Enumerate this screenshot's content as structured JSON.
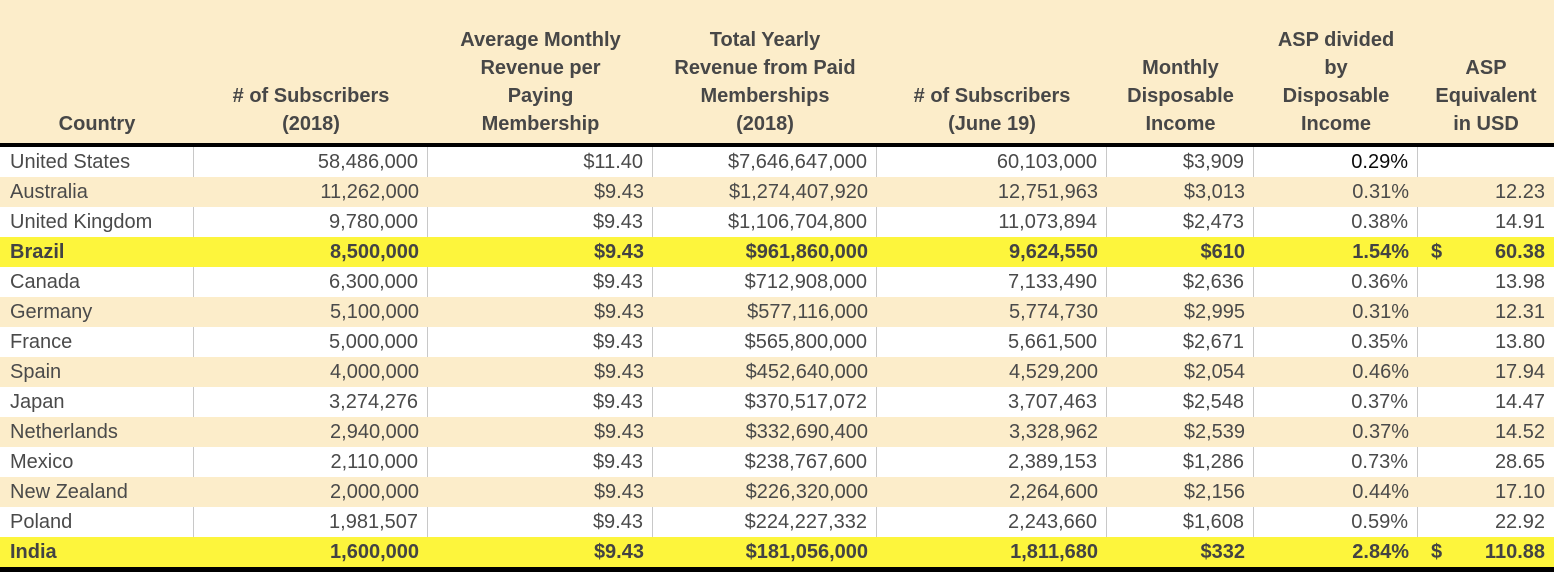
{
  "colors": {
    "header_fill": "#fcedca",
    "stripe_fill": "#fcedca",
    "highlight_fill": "#fdf53c",
    "text": "#4a4a4a",
    "emphasis_text": "#0a0a0a",
    "grid_line": "#c8c8c8",
    "rule": "#000000"
  },
  "chart_data": {
    "type": "table",
    "columns": [
      {
        "label": "Country"
      },
      {
        "label": "# of Subscribers\n(2018)"
      },
      {
        "label": "Average Monthly\nRevenue per\nPaying\nMembership"
      },
      {
        "label": "Total Yearly\nRevenue from Paid\nMemberships\n(2018)"
      },
      {
        "label": "# of Subscribers\n(June 19)"
      },
      {
        "label": "Monthly\nDisposable\nIncome"
      },
      {
        "label": "ASP divided\nby\nDisposable\nIncome"
      },
      {
        "label": "ASP\nEquivalent\nin USD"
      }
    ],
    "rows": [
      {
        "country": "United States",
        "subs_2018": "58,486,000",
        "avg_rev": "$11.40",
        "total_rev": "$7,646,647,000",
        "subs_jun19": "60,103,000",
        "disp_income": "$3,909",
        "asp_pct": "0.29%",
        "usd_prefix": "",
        "asp_usd": "",
        "style": "plain",
        "pct_strong": true
      },
      {
        "country": "Australia",
        "subs_2018": "11,262,000",
        "avg_rev": "$9.43",
        "total_rev": "$1,274,407,920",
        "subs_jun19": "12,751,963",
        "disp_income": "$3,013",
        "asp_pct": "0.31%",
        "usd_prefix": "",
        "asp_usd": "12.23",
        "style": "stripe",
        "pct_strong": false
      },
      {
        "country": "United Kingdom",
        "subs_2018": "9,780,000",
        "avg_rev": "$9.43",
        "total_rev": "$1,106,704,800",
        "subs_jun19": "11,073,894",
        "disp_income": "$2,473",
        "asp_pct": "0.38%",
        "usd_prefix": "",
        "asp_usd": "14.91",
        "style": "plain",
        "pct_strong": false
      },
      {
        "country": "Brazil",
        "subs_2018": "8,500,000",
        "avg_rev": "$9.43",
        "total_rev": "$961,860,000",
        "subs_jun19": "9,624,550",
        "disp_income": "$610",
        "asp_pct": "1.54%",
        "usd_prefix": "$",
        "asp_usd": "60.38",
        "style": "highlight",
        "pct_strong": false
      },
      {
        "country": "Canada",
        "subs_2018": "6,300,000",
        "avg_rev": "$9.43",
        "total_rev": "$712,908,000",
        "subs_jun19": "7,133,490",
        "disp_income": "$2,636",
        "asp_pct": "0.36%",
        "usd_prefix": "",
        "asp_usd": "13.98",
        "style": "plain",
        "pct_strong": false
      },
      {
        "country": "Germany",
        "subs_2018": "5,100,000",
        "avg_rev": "$9.43",
        "total_rev": "$577,116,000",
        "subs_jun19": "5,774,730",
        "disp_income": "$2,995",
        "asp_pct": "0.31%",
        "usd_prefix": "",
        "asp_usd": "12.31",
        "style": "stripe",
        "pct_strong": false
      },
      {
        "country": "France",
        "subs_2018": "5,000,000",
        "avg_rev": "$9.43",
        "total_rev": "$565,800,000",
        "subs_jun19": "5,661,500",
        "disp_income": "$2,671",
        "asp_pct": "0.35%",
        "usd_prefix": "",
        "asp_usd": "13.80",
        "style": "plain",
        "pct_strong": false
      },
      {
        "country": "Spain",
        "subs_2018": "4,000,000",
        "avg_rev": "$9.43",
        "total_rev": "$452,640,000",
        "subs_jun19": "4,529,200",
        "disp_income": "$2,054",
        "asp_pct": "0.46%",
        "usd_prefix": "",
        "asp_usd": "17.94",
        "style": "stripe",
        "pct_strong": false
      },
      {
        "country": "Japan",
        "subs_2018": "3,274,276",
        "avg_rev": "$9.43",
        "total_rev": "$370,517,072",
        "subs_jun19": "3,707,463",
        "disp_income": "$2,548",
        "asp_pct": "0.37%",
        "usd_prefix": "",
        "asp_usd": "14.47",
        "style": "plain",
        "pct_strong": false
      },
      {
        "country": "Netherlands",
        "subs_2018": "2,940,000",
        "avg_rev": "$9.43",
        "total_rev": "$332,690,400",
        "subs_jun19": "3,328,962",
        "disp_income": "$2,539",
        "asp_pct": "0.37%",
        "usd_prefix": "",
        "asp_usd": "14.52",
        "style": "stripe",
        "pct_strong": false
      },
      {
        "country": "Mexico",
        "subs_2018": "2,110,000",
        "avg_rev": "$9.43",
        "total_rev": "$238,767,600",
        "subs_jun19": "2,389,153",
        "disp_income": "$1,286",
        "asp_pct": "0.73%",
        "usd_prefix": "",
        "asp_usd": "28.65",
        "style": "plain",
        "pct_strong": false
      },
      {
        "country": "New Zealand",
        "subs_2018": "2,000,000",
        "avg_rev": "$9.43",
        "total_rev": "$226,320,000",
        "subs_jun19": "2,264,600",
        "disp_income": "$2,156",
        "asp_pct": "0.44%",
        "usd_prefix": "",
        "asp_usd": "17.10",
        "style": "stripe",
        "pct_strong": false
      },
      {
        "country": "Poland",
        "subs_2018": "1,981,507",
        "avg_rev": "$9.43",
        "total_rev": "$224,227,332",
        "subs_jun19": "2,243,660",
        "disp_income": "$1,608",
        "asp_pct": "0.59%",
        "usd_prefix": "",
        "asp_usd": "22.92",
        "style": "plain",
        "pct_strong": false
      },
      {
        "country": "India",
        "subs_2018": "1,600,000",
        "avg_rev": "$9.43",
        "total_rev": "$181,056,000",
        "subs_jun19": "1,811,680",
        "disp_income": "$332",
        "asp_pct": "2.84%",
        "usd_prefix": "$",
        "asp_usd": "110.88",
        "style": "highlight",
        "pct_strong": false
      }
    ]
  }
}
